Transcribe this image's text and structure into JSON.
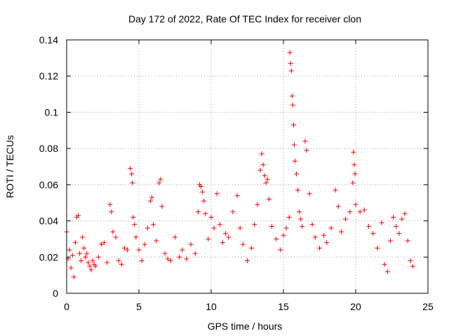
{
  "chart_data": {
    "type": "scatter",
    "title": "Day 172 of 2022, Rate Of TEC Index for receiver clon",
    "xlabel": "GPS time / hours",
    "ylabel": "ROTI / TECUs",
    "xlim": [
      0,
      25
    ],
    "ylim": [
      0,
      0.14
    ],
    "x_ticks": [
      0,
      5,
      10,
      15,
      20,
      25
    ],
    "x_tick_labels": [
      "0",
      "5",
      "10",
      "15",
      "20",
      "25"
    ],
    "y_ticks": [
      0,
      0.02,
      0.04,
      0.06,
      0.08,
      0.1,
      0.12,
      0.14
    ],
    "y_tick_labels": [
      "0",
      "0.02",
      "0.04",
      "0.06",
      "0.08",
      "0.1",
      "0.12",
      "0.14"
    ],
    "grid": true,
    "marker": "plus",
    "color": "#ff0000",
    "series": [
      {
        "points": [
          [
            0.0,
            0.034
          ],
          [
            0.1,
            0.019
          ],
          [
            0.2,
            0.024
          ],
          [
            0.3,
            0.014
          ],
          [
            0.4,
            0.021
          ],
          [
            0.5,
            0.009
          ],
          [
            0.6,
            0.028
          ],
          [
            0.7,
            0.042
          ],
          [
            0.8,
            0.043
          ],
          [
            0.9,
            0.022
          ],
          [
            1.0,
            0.018
          ],
          [
            1.1,
            0.031
          ],
          [
            1.2,
            0.025
          ],
          [
            1.3,
            0.02
          ],
          [
            1.4,
            0.022
          ],
          [
            1.5,
            0.017
          ],
          [
            1.6,
            0.015
          ],
          [
            1.7,
            0.013
          ],
          [
            1.8,
            0.018
          ],
          [
            1.9,
            0.016
          ],
          [
            2.0,
            0.015
          ],
          [
            2.2,
            0.02
          ],
          [
            2.4,
            0.027
          ],
          [
            2.6,
            0.028
          ],
          [
            2.8,
            0.017
          ],
          [
            3.0,
            0.049
          ],
          [
            3.1,
            0.045
          ],
          [
            3.2,
            0.034
          ],
          [
            3.4,
            0.031
          ],
          [
            3.6,
            0.018
          ],
          [
            3.8,
            0.016
          ],
          [
            4.0,
            0.025
          ],
          [
            4.2,
            0.024
          ],
          [
            4.4,
            0.069
          ],
          [
            4.5,
            0.066
          ],
          [
            4.55,
            0.061
          ],
          [
            4.6,
            0.042
          ],
          [
            4.7,
            0.038
          ],
          [
            4.8,
            0.031
          ],
          [
            5.0,
            0.024
          ],
          [
            5.2,
            0.018
          ],
          [
            5.4,
            0.027
          ],
          [
            5.6,
            0.036
          ],
          [
            5.8,
            0.051
          ],
          [
            5.9,
            0.053
          ],
          [
            6.0,
            0.038
          ],
          [
            6.2,
            0.029
          ],
          [
            6.4,
            0.061
          ],
          [
            6.5,
            0.063
          ],
          [
            6.6,
            0.048
          ],
          [
            6.8,
            0.022
          ],
          [
            7.0,
            0.019
          ],
          [
            7.2,
            0.018
          ],
          [
            7.5,
            0.031
          ],
          [
            7.8,
            0.02
          ],
          [
            8.0,
            0.024
          ],
          [
            8.3,
            0.019
          ],
          [
            8.6,
            0.027
          ],
          [
            8.9,
            0.022
          ],
          [
            9.1,
            0.045
          ],
          [
            9.2,
            0.06
          ],
          [
            9.3,
            0.059
          ],
          [
            9.4,
            0.056
          ],
          [
            9.5,
            0.051
          ],
          [
            9.6,
            0.044
          ],
          [
            9.8,
            0.03
          ],
          [
            10.0,
            0.042
          ],
          [
            10.2,
            0.036
          ],
          [
            10.4,
            0.055
          ],
          [
            10.6,
            0.038
          ],
          [
            10.8,
            0.028
          ],
          [
            11.0,
            0.033
          ],
          [
            11.2,
            0.031
          ],
          [
            11.5,
            0.045
          ],
          [
            11.8,
            0.054
          ],
          [
            12.0,
            0.036
          ],
          [
            12.2,
            0.027
          ],
          [
            12.5,
            0.018
          ],
          [
            12.8,
            0.025
          ],
          [
            13.0,
            0.038
          ],
          [
            13.2,
            0.049
          ],
          [
            13.4,
            0.068
          ],
          [
            13.5,
            0.077
          ],
          [
            13.6,
            0.071
          ],
          [
            13.7,
            0.065
          ],
          [
            13.8,
            0.061
          ],
          [
            13.9,
            0.063
          ],
          [
            14.0,
            0.052
          ],
          [
            14.2,
            0.037
          ],
          [
            14.5,
            0.03
          ],
          [
            14.8,
            0.024
          ],
          [
            15.0,
            0.032
          ],
          [
            15.2,
            0.036
          ],
          [
            15.4,
            0.042
          ],
          [
            15.45,
            0.133
          ],
          [
            15.5,
            0.127
          ],
          [
            15.55,
            0.123
          ],
          [
            15.6,
            0.109
          ],
          [
            15.65,
            0.104
          ],
          [
            15.7,
            0.093
          ],
          [
            15.75,
            0.082
          ],
          [
            15.8,
            0.073
          ],
          [
            15.9,
            0.066
          ],
          [
            16.0,
            0.057
          ],
          [
            16.1,
            0.045
          ],
          [
            16.2,
            0.041
          ],
          [
            16.3,
            0.037
          ],
          [
            16.5,
            0.084
          ],
          [
            16.6,
            0.079
          ],
          [
            16.8,
            0.055
          ],
          [
            17.0,
            0.038
          ],
          [
            17.2,
            0.031
          ],
          [
            17.5,
            0.025
          ],
          [
            17.8,
            0.032
          ],
          [
            18.0,
            0.028
          ],
          [
            18.3,
            0.036
          ],
          [
            18.6,
            0.057
          ],
          [
            18.8,
            0.048
          ],
          [
            19.0,
            0.034
          ],
          [
            19.3,
            0.041
          ],
          [
            19.6,
            0.045
          ],
          [
            19.8,
            0.061
          ],
          [
            19.85,
            0.078
          ],
          [
            19.9,
            0.071
          ],
          [
            19.95,
            0.066
          ],
          [
            20.0,
            0.049
          ],
          [
            20.3,
            0.045
          ],
          [
            20.6,
            0.046
          ],
          [
            20.9,
            0.037
          ],
          [
            21.2,
            0.033
          ],
          [
            21.5,
            0.025
          ],
          [
            21.8,
            0.039
          ],
          [
            22.0,
            0.016
          ],
          [
            22.2,
            0.012
          ],
          [
            22.4,
            0.029
          ],
          [
            22.6,
            0.042
          ],
          [
            22.8,
            0.037
          ],
          [
            23.0,
            0.033
          ],
          [
            23.2,
            0.041
          ],
          [
            23.4,
            0.044
          ],
          [
            23.6,
            0.029
          ],
          [
            23.8,
            0.018
          ],
          [
            23.95,
            0.015
          ]
        ]
      }
    ]
  }
}
